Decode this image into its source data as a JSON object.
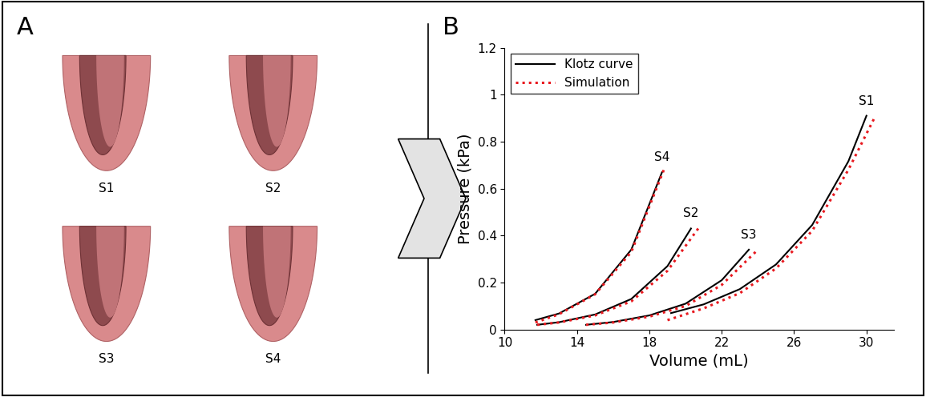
{
  "figure": {
    "panel_labels": [
      "A",
      "B"
    ],
    "model_labels": [
      "S1",
      "S2",
      "S3",
      "S4"
    ]
  },
  "chart_data": {
    "type": "line",
    "xlabel": "Volume (mL)",
    "ylabel": "Pressure (kPa)",
    "xlim": [
      10,
      31.5
    ],
    "xticks": [
      10,
      14,
      18,
      22,
      26,
      30
    ],
    "ylim": [
      0,
      1.2
    ],
    "yticks": [
      0,
      0.2,
      0.4,
      0.6,
      0.8,
      1,
      1.2
    ],
    "legend": "upper left",
    "series": [
      {
        "name": "Klotz curve",
        "curve": "S1",
        "color": "#000000",
        "line_style": "solid",
        "x": [
          19.2,
          21,
          23,
          25,
          27,
          29,
          30
        ],
        "values": [
          0.07,
          0.107,
          0.172,
          0.277,
          0.445,
          0.716,
          0.91
        ]
      },
      {
        "name": "Simulation",
        "curve": "S1",
        "color": "#e8191f",
        "line_style": "dotted",
        "x": [
          19.0,
          21,
          23,
          25,
          27,
          29,
          30.5
        ],
        "values": [
          0.04,
          0.09,
          0.155,
          0.26,
          0.42,
          0.68,
          0.91
        ]
      },
      {
        "name": "Klotz curve",
        "curve": "S2",
        "color": "#000000",
        "line_style": "solid",
        "x": [
          11.8,
          13,
          15,
          17,
          19,
          20.3
        ],
        "values": [
          0.02,
          0.031,
          0.064,
          0.13,
          0.27,
          0.43
        ]
      },
      {
        "name": "Simulation",
        "curve": "S2",
        "color": "#e8191f",
        "line_style": "dotted",
        "x": [
          11.8,
          13,
          15,
          17,
          19,
          20.7
        ],
        "values": [
          0.02,
          0.03,
          0.06,
          0.12,
          0.25,
          0.43
        ]
      },
      {
        "name": "Klotz curve",
        "curve": "S3",
        "color": "#000000",
        "line_style": "solid",
        "x": [
          14.5,
          16,
          18,
          20,
          22,
          23.5
        ],
        "values": [
          0.02,
          0.032,
          0.06,
          0.11,
          0.21,
          0.34
        ]
      },
      {
        "name": "Simulation",
        "curve": "S3",
        "color": "#e8191f",
        "line_style": "dotted",
        "x": [
          14.5,
          16,
          18,
          20,
          22,
          24
        ],
        "values": [
          0.02,
          0.03,
          0.055,
          0.1,
          0.19,
          0.34
        ]
      },
      {
        "name": "Klotz curve",
        "curve": "S4",
        "color": "#000000",
        "line_style": "solid",
        "x": [
          11.7,
          13,
          15,
          17,
          18.7
        ],
        "values": [
          0.04,
          0.068,
          0.152,
          0.34,
          0.67
        ]
      },
      {
        "name": "Simulation",
        "curve": "S4",
        "color": "#e8191f",
        "line_style": "dotted",
        "x": [
          11.7,
          13,
          15,
          17,
          18.8
        ],
        "values": [
          0.03,
          0.065,
          0.15,
          0.33,
          0.68
        ]
      }
    ]
  }
}
